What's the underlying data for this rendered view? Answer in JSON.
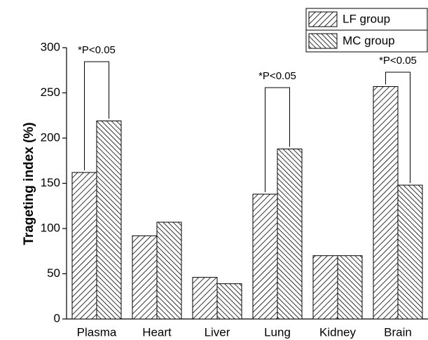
{
  "chart_data": {
    "type": "bar",
    "ylabel": "Trageting index (%)",
    "categories": [
      "Plasma",
      "Heart",
      "Liver",
      "Lung",
      "Kidney",
      "Brain"
    ],
    "series": [
      {
        "name": "LF group",
        "color": "#000000",
        "values": [
          162,
          92,
          46,
          138,
          70,
          257
        ]
      },
      {
        "name": "MC group",
        "color": "#000000",
        "values": [
          219,
          107,
          39,
          188,
          70,
          148
        ]
      }
    ],
    "annotations": [
      "*P<0.05",
      "*P<0.05",
      "*P<0.05"
    ],
    "ylim": [
      0,
      300
    ],
    "yticks": [
      0,
      50,
      100,
      150,
      200,
      250,
      300
    ],
    "legend": "upper right"
  }
}
